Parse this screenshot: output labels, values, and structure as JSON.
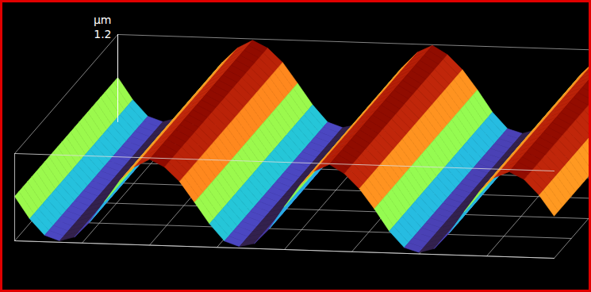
{
  "chart_data": {
    "type": "surface",
    "x": [
      0,
      1,
      2,
      3,
      4,
      5,
      6,
      7,
      8,
      9,
      10,
      11,
      12,
      13,
      14,
      15,
      16,
      17,
      18,
      19,
      20,
      21,
      22,
      23,
      24,
      25,
      26,
      27,
      28,
      29,
      30,
      31,
      32,
      33,
      34,
      35,
      36
    ],
    "values": [
      0.61,
      0.31,
      0.09,
      0.02,
      0.08,
      0.29,
      0.58,
      0.87,
      1.07,
      1.18,
      1.08,
      0.89,
      0.61,
      0.32,
      0.09,
      0.02,
      0.07,
      0.28,
      0.59,
      0.88,
      1.09,
      1.19,
      1.07,
      0.87,
      0.6,
      0.3,
      0.08,
      0.02,
      0.08,
      0.3,
      0.6,
      0.88,
      1.08,
      1.17,
      1.07,
      0.86,
      0.58
    ],
    "xlim": [
      0,
      36
    ],
    "ylim": [
      0,
      1.2
    ],
    "yticks": [
      1.2
    ],
    "y_label": "μm",
    "tick_labels": "y",
    "grid": true
  }
}
